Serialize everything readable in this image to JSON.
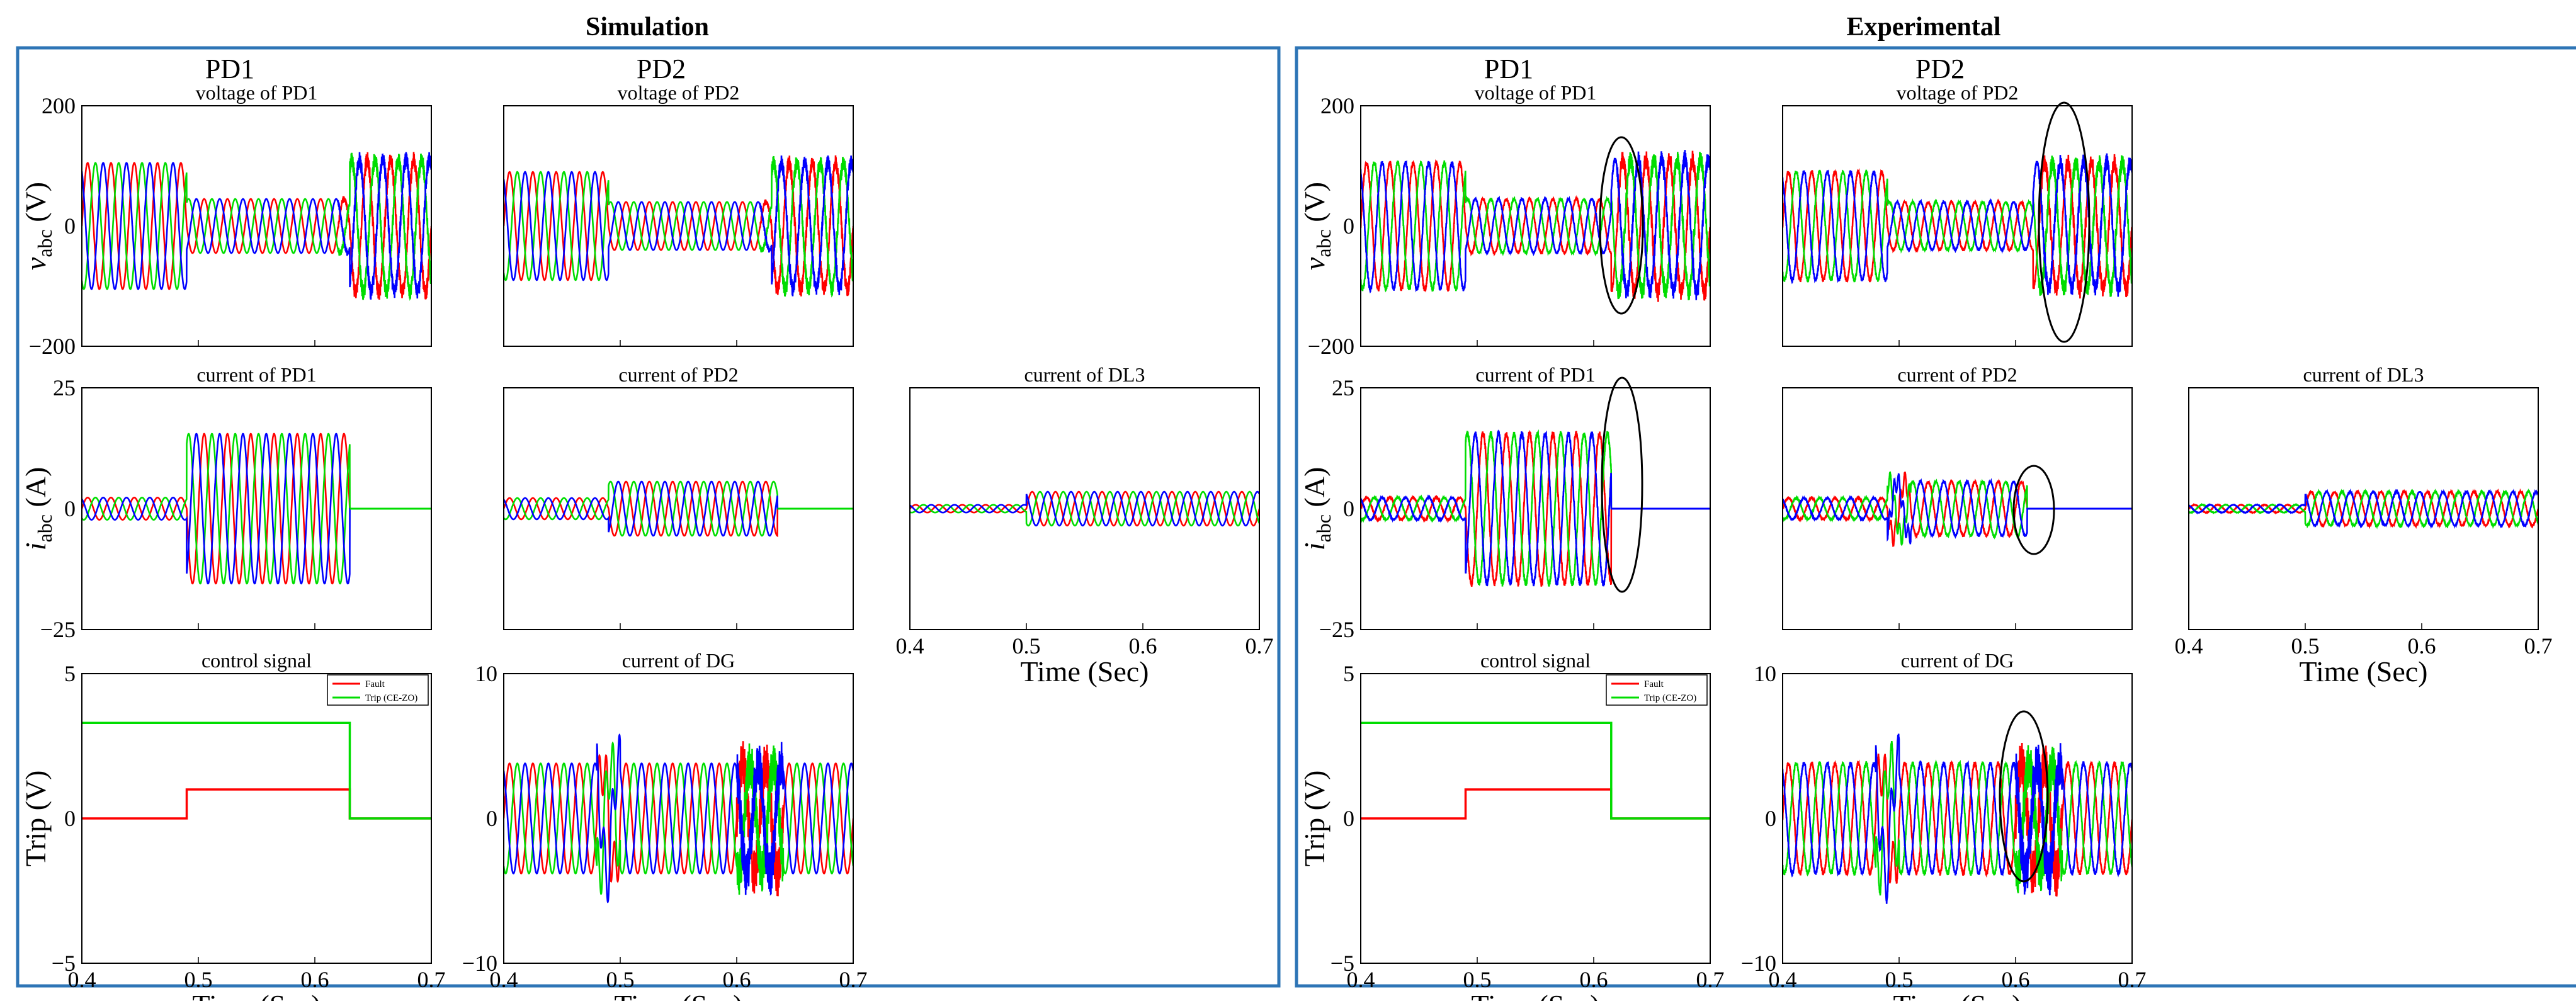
{
  "figure": {
    "panels": [
      {
        "id": "sim",
        "title": "Simulation"
      },
      {
        "id": "exp",
        "title": "Experimental"
      }
    ],
    "column_headers": [
      "PD1",
      "PD2"
    ],
    "row_ylabels": [
      {
        "main": "v",
        "sub": "abc",
        "unit": " (V)"
      },
      {
        "main": "i",
        "sub": "abc",
        "unit": " (A)"
      },
      {
        "main": "Trip (V)",
        "sub": "",
        "unit": ""
      }
    ],
    "xlabel": "Time (Sec)",
    "colors": {
      "frame": "#2e75b6",
      "red": "#ff0000",
      "green": "#00dd00",
      "blue": "#0000ff",
      "black": "#000000"
    }
  },
  "chart_data": [
    {
      "panel": "Simulation",
      "type": "line",
      "title": "voltage of PD1",
      "ylim": [
        -200,
        200
      ],
      "yticks": [
        "200",
        "0",
        "−200"
      ],
      "xlim": [
        0.4,
        0.7
      ],
      "series": [
        "phase a",
        "phase b",
        "phase c"
      ]
    },
    {
      "panel": "Simulation",
      "type": "line",
      "title": "voltage of PD2",
      "ylim": [
        -200,
        200
      ],
      "xlim": [
        0.4,
        0.7
      ],
      "series": [
        "phase a",
        "phase b",
        "phase c"
      ]
    },
    {
      "panel": "Simulation",
      "type": "line",
      "title": "current of PD1",
      "ylim": [
        -25,
        25
      ],
      "yticks": [
        "25",
        "0",
        "−25"
      ],
      "xlim": [
        0.4,
        0.7
      ],
      "series": [
        "phase a",
        "phase b",
        "phase c"
      ]
    },
    {
      "panel": "Simulation",
      "type": "line",
      "title": "current of PD2",
      "ylim": [
        -25,
        25
      ],
      "xlim": [
        0.4,
        0.7
      ],
      "series": [
        "phase a",
        "phase b",
        "phase c"
      ]
    },
    {
      "panel": "Simulation",
      "type": "line",
      "title": "current of DL3",
      "ylim": [
        -25,
        25
      ],
      "xlim": [
        0.4,
        0.7
      ],
      "xticks": [
        "0.4",
        "0.5",
        "0.6",
        "0.7"
      ],
      "xlabel": "Time (Sec)",
      "series": [
        "phase a",
        "phase b",
        "phase c"
      ]
    },
    {
      "panel": "Simulation",
      "type": "line",
      "title": "control signal",
      "ylim": [
        -5,
        5
      ],
      "yticks": [
        "5",
        "0",
        "−5"
      ],
      "xlim": [
        0.4,
        0.7
      ],
      "xticks": [
        "0.4",
        "0.5",
        "0.6",
        "0.7"
      ],
      "xlabel": "Time (Sec)",
      "legend": [
        "Fault",
        "Trip (CE-ZO)"
      ],
      "series": [
        {
          "name": "Fault",
          "x": [
            0.4,
            0.49,
            0.49,
            0.63,
            0.63,
            0.7
          ],
          "y": [
            0,
            0,
            1,
            1,
            0,
            0
          ]
        },
        {
          "name": "Trip (CE-ZO)",
          "x": [
            0.4,
            0.63,
            0.63,
            0.7
          ],
          "y": [
            3.3,
            3.3,
            0,
            0
          ]
        }
      ]
    },
    {
      "panel": "Simulation",
      "type": "line",
      "title": "current of DG",
      "ylim": [
        -10,
        10
      ],
      "yticks": [
        "10",
        "0",
        "−10"
      ],
      "xlim": [
        0.4,
        0.7
      ],
      "xticks": [
        "0.4",
        "0.5",
        "0.6",
        "0.7"
      ],
      "xlabel": "Time (Sec)",
      "series": [
        "phase a",
        "phase b",
        "phase c"
      ]
    },
    {
      "panel": "Experimental",
      "type": "line",
      "title": "voltage of PD1",
      "ylim": [
        -200,
        200
      ],
      "yticks": [
        "200",
        "0",
        "−200"
      ],
      "xlim": [
        0.4,
        0.7
      ],
      "series": [
        "phase a",
        "phase b",
        "phase c"
      ]
    },
    {
      "panel": "Experimental",
      "type": "line",
      "title": "voltage of PD2",
      "ylim": [
        -200,
        200
      ],
      "xlim": [
        0.4,
        0.7
      ],
      "series": [
        "phase a",
        "phase b",
        "phase c"
      ]
    },
    {
      "panel": "Experimental",
      "type": "line",
      "title": "current of PD1",
      "ylim": [
        -25,
        25
      ],
      "yticks": [
        "25",
        "0",
        "−25"
      ],
      "xlim": [
        0.4,
        0.7
      ],
      "series": [
        "phase a",
        "phase b",
        "phase c"
      ]
    },
    {
      "panel": "Experimental",
      "type": "line",
      "title": "current of PD2",
      "ylim": [
        -25,
        25
      ],
      "xlim": [
        0.4,
        0.7
      ],
      "series": [
        "phase a",
        "phase b",
        "phase c"
      ]
    },
    {
      "panel": "Experimental",
      "type": "line",
      "title": "current of DL3",
      "ylim": [
        -25,
        25
      ],
      "xlim": [
        0.4,
        0.7
      ],
      "xticks": [
        "0.4",
        "0.5",
        "0.6",
        "0.7"
      ],
      "xlabel": "Time (Sec)",
      "series": [
        "phase a",
        "phase b",
        "phase c"
      ]
    },
    {
      "panel": "Experimental",
      "type": "line",
      "title": "control signal",
      "ylim": [
        -5,
        5
      ],
      "yticks": [
        "5",
        "0",
        "−5"
      ],
      "xlim": [
        0.4,
        0.7
      ],
      "xticks": [
        "0.4",
        "0.5",
        "0.6",
        "0.7"
      ],
      "xlabel": "Time (Sec)",
      "legend": [
        "Fault",
        "Trip (CE-ZO)"
      ],
      "series": [
        {
          "name": "Fault",
          "x": [
            0.4,
            0.49,
            0.49,
            0.615,
            0.615,
            0.7
          ],
          "y": [
            0,
            0,
            1,
            1,
            0,
            0
          ]
        },
        {
          "name": "Trip (CE-ZO)",
          "x": [
            0.4,
            0.615,
            0.615,
            0.7
          ],
          "y": [
            3.3,
            3.3,
            0,
            0
          ]
        }
      ]
    },
    {
      "panel": "Experimental",
      "type": "line",
      "title": "current of DG",
      "ylim": [
        -10,
        10
      ],
      "yticks": [
        "10",
        "0",
        "−10"
      ],
      "xlim": [
        0.4,
        0.7
      ],
      "xticks": [
        "0.4",
        "0.5",
        "0.6",
        "0.7"
      ],
      "xlabel": "Time (Sec)",
      "series": [
        "phase a",
        "phase b",
        "phase c"
      ]
    }
  ]
}
